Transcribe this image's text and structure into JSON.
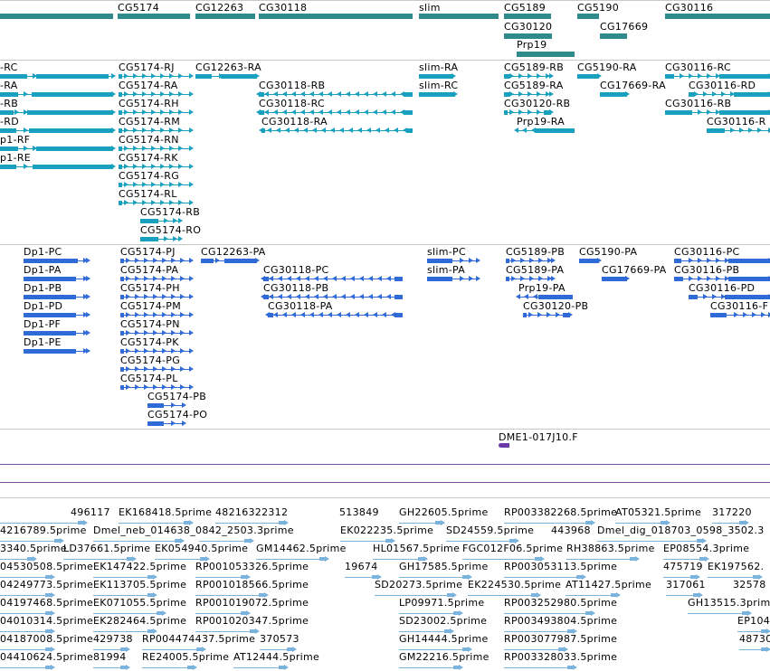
{
  "colors": {
    "gene_summary": "#2f8b8b",
    "transcript_a": "#1aa0bf",
    "transcript_b": "#2f6ad6",
    "est_marker": "#6a3aa8",
    "cdna": "#7ab4dc",
    "divider": "#c8c8c8",
    "purple_line": "#7a4e9e"
  },
  "tracks": {
    "genes": {
      "labels": [
        "CG5174",
        "CG12263",
        "CG30118",
        "slim",
        "CG5189",
        "CG5190",
        "CG30116",
        "CG30120",
        "CG17669",
        "Prp19"
      ]
    },
    "transcripts_a": {
      "labels": [
        "-RC",
        "-RA",
        "-RB",
        "-RD",
        "p1-RF",
        "p1-RE",
        "CG5174-RJ",
        "CG5174-RA",
        "CG5174-RH",
        "CG5174-RM",
        "CG5174-RN",
        "CG5174-RK",
        "CG5174-RG",
        "CG5174-RL",
        "CG5174-RB",
        "CG5174-RO",
        "CG12263-RA",
        "CG30118-RB",
        "CG30118-RC",
        "CG30118-RA",
        "slim-RA",
        "slim-RC",
        "CG5189-RB",
        "CG5189-RA",
        "CG30120-RB",
        "Prp19-RA",
        "CG5190-RA",
        "CG17669-RA",
        "CG30116-RC",
        "CG30116-RD",
        "CG30116-RB",
        "CG30116-R"
      ]
    },
    "transcripts_b": {
      "labels": [
        "Dp1-PC",
        "Dp1-PA",
        "Dp1-PB",
        "Dp1-PD",
        "Dp1-PF",
        "Dp1-PE",
        "CG5174-PJ",
        "CG5174-PA",
        "CG5174-PH",
        "CG5174-PM",
        "CG5174-PN",
        "CG5174-PK",
        "CG5174-PG",
        "CG5174-PL",
        "CG5174-PB",
        "CG5174-PO",
        "CG12263-PA",
        "CG30118-PC",
        "CG30118-PB",
        "CG30118-PA",
        "slim-PC",
        "slim-PA",
        "CG5189-PB",
        "CG5189-PA",
        "Prp19-PA",
        "CG30120-PB",
        "CG5190-PA",
        "CG17669-PA",
        "CG30116-PC",
        "CG30116-PB",
        "CG30116-PD",
        "CG30116-F"
      ]
    },
    "est": {
      "labels": [
        "DME1-017J10.F"
      ]
    },
    "cdna": {
      "labels": [
        "496117",
        "EK168418.5prime",
        "48216322312",
        "513849",
        "GH22605.5prime",
        "RP003382268.5prime",
        "AT05321.5prime",
        "317220",
        "4216789.5prime",
        "Dmel_neb_014638_0842_2503.3prime",
        "EK022235.5prime",
        "SD24559.5prime",
        "443968",
        "Dmel_dig_018703_0598_3502.3",
        "3340.5prime",
        "LD37661.5prime",
        "EK054940.5prime",
        "GM14462.5prime",
        "HL01567.5prime",
        "FGC012F06.5prime",
        "RH38863.5prime",
        "EP08554.3prime",
        "04530508.5prime",
        "EK147422.5prime",
        "RP001053326.5prime",
        "19674",
        "GH17585.5prime",
        "RP003053113.5prime",
        "475719",
        "EK197562.",
        "04249773.5prime",
        "EK113705.5prime",
        "RP001018566.5prime",
        "SD20273.5prime",
        "EK224530.5prime",
        "AT11427.5prime",
        "317061",
        "32578",
        "04197468.5prime",
        "EK071055.5prime",
        "RP001019072.5prime",
        "LP09971.5prime",
        "RP003252980.5prime",
        "GH13515.3prime",
        "04010314.5prime",
        "EK282464.5prime",
        "RP001020347.5prime",
        "SD23002.5prime",
        "RP003493804.5prime",
        "EP104",
        "04187008.5prime",
        "429738",
        "RP004474437.5prime",
        "370573",
        "GH14444.5prime",
        "RP003077987.5prime",
        "48730",
        "04410624.5prime",
        "81994",
        "RE24005.5prime",
        "AT12444.5prime",
        "GM22216.5prime",
        "RP003328033.5prime"
      ]
    }
  }
}
